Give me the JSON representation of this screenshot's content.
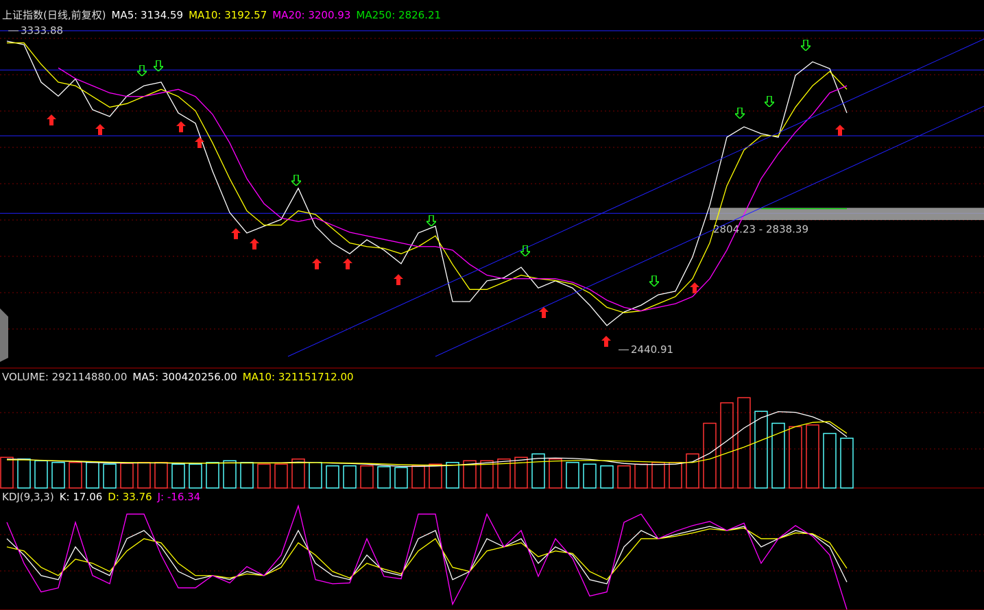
{
  "chart_data": [
    {
      "type": "line",
      "title": "上证指数(日线,前复权)",
      "ylim": [
        2390,
        3420
      ],
      "series": [
        {
          "name": "MA5: 3134.59",
          "color": "#ffffff",
          "values": [
            3305,
            3295,
            3190,
            3151,
            3199,
            3113,
            3094,
            3151,
            3180,
            3190,
            3104,
            3075,
            2941,
            2825,
            2768,
            2787,
            2806,
            2893,
            2787,
            2739,
            2710,
            2749,
            2720,
            2682,
            2768,
            2787,
            2576,
            2576,
            2634,
            2643,
            2672,
            2614,
            2634,
            2614,
            2566,
            2509,
            2547,
            2566,
            2595,
            2605,
            2701,
            2845,
            3036,
            3065,
            3046,
            3036,
            3209,
            3247,
            3228,
            3104
          ]
        },
        {
          "name": "MA10: 3192.57",
          "color": "#ffff00",
          "values": [
            3300,
            3300,
            3240,
            3190,
            3180,
            3150,
            3120,
            3130,
            3150,
            3170,
            3150,
            3110,
            3020,
            2920,
            2830,
            2790,
            2790,
            2830,
            2820,
            2780,
            2740,
            2730,
            2725,
            2710,
            2730,
            2760,
            2680,
            2610,
            2610,
            2630,
            2650,
            2640,
            2635,
            2625,
            2600,
            2560,
            2545,
            2550,
            2570,
            2590,
            2640,
            2740,
            2900,
            3000,
            3040,
            3040,
            3120,
            3180,
            3220,
            3170
          ]
        },
        {
          "name": "MA20: 3200.93",
          "color": "#ff00ff",
          "values": [
            null,
            null,
            null,
            3230,
            3200,
            3180,
            3160,
            3150,
            3150,
            3160,
            3170,
            3150,
            3100,
            3020,
            2920,
            2850,
            2810,
            2800,
            2810,
            2790,
            2770,
            2760,
            2750,
            2740,
            2730,
            2730,
            2720,
            2680,
            2650,
            2640,
            2640,
            2640,
            2640,
            2630,
            2610,
            2580,
            2560,
            2550,
            2560,
            2570,
            2590,
            2640,
            2720,
            2820,
            2920,
            2990,
            3050,
            3100,
            3160,
            3180
          ]
        },
        {
          "name": "MA250: 2826.21",
          "color": "#00e000",
          "values": [
            null,
            null,
            null,
            null,
            null,
            null,
            null,
            null,
            null,
            null,
            null,
            null,
            null,
            null,
            null,
            null,
            null,
            null,
            null,
            null,
            null,
            null,
            null,
            null,
            null,
            null,
            null,
            null,
            null,
            null,
            null,
            null,
            null,
            null,
            null,
            null,
            null,
            null,
            null,
            null,
            null,
            null,
            null,
            null,
            2836,
            2836,
            2836,
            2836,
            2836,
            2836
          ]
        }
      ],
      "hlines": [
        3334,
        3224,
        3040,
        2823
      ],
      "hline_color": "#2020ff",
      "band": {
        "label": "2804.23 - 2838.39",
        "range": [
          2804.23,
          2838.39
        ]
      },
      "annotations": [
        {
          "text": "3333.88",
          "value": 3333.88
        },
        {
          "text": "2440.91",
          "value": 2440.91
        }
      ]
    },
    {
      "type": "bar",
      "title": "VOLUME: 292114880.00",
      "ylim": [
        0,
        700000000
      ],
      "up_color": "#ff3232",
      "down_color": "#54fcfc",
      "values": [
        180000000,
        170000000,
        160000000,
        150000000,
        150000000,
        150000000,
        140000000,
        145000000,
        150000000,
        150000000,
        140000000,
        140000000,
        150000000,
        160000000,
        150000000,
        140000000,
        140000000,
        170000000,
        150000000,
        130000000,
        130000000,
        130000000,
        125000000,
        120000000,
        130000000,
        140000000,
        150000000,
        160000000,
        160000000,
        170000000,
        180000000,
        200000000,
        170000000,
        150000000,
        140000000,
        130000000,
        130000000,
        140000000,
        150000000,
        150000000,
        200000000,
        380000000,
        500000000,
        530000000,
        450000000,
        380000000,
        360000000,
        370000000,
        320000000,
        292114880
      ],
      "series": [
        {
          "name": "MA5: 300420256.00",
          "color": "#ffffff",
          "values": [
            170000000,
            168000000,
            162000000,
            158000000,
            156000000,
            150000000,
            147000000,
            147000000,
            147000000,
            147000000,
            145000000,
            145000000,
            146000000,
            148000000,
            148000000,
            148000000,
            148000000,
            152000000,
            150000000,
            146000000,
            144000000,
            140000000,
            133000000,
            127000000,
            127000000,
            129000000,
            133000000,
            140000000,
            148000000,
            156000000,
            164000000,
            174000000,
            176000000,
            174000000,
            168000000,
            158000000,
            144000000,
            138000000,
            138000000,
            140000000,
            154000000,
            204000000,
            276000000,
            352000000,
            412000000,
            448000000,
            444000000,
            418000000,
            376000000,
            300420256
          ]
        },
        {
          "name": "MA10: 321151712.00",
          "color": "#ffff00",
          "values": [
            165000000,
            165000000,
            163000000,
            160000000,
            158000000,
            155000000,
            152000000,
            150000000,
            149000000,
            149000000,
            147000000,
            146000000,
            146000000,
            147000000,
            147000000,
            147000000,
            147000000,
            148000000,
            149000000,
            148000000,
            146000000,
            144000000,
            141000000,
            137000000,
            135000000,
            134000000,
            134000000,
            136000000,
            139000000,
            143000000,
            148000000,
            154000000,
            158000000,
            161000000,
            162000000,
            161000000,
            158000000,
            155000000,
            152000000,
            149000000,
            150000000,
            170000000,
            205000000,
            240000000,
            280000000,
            320000000,
            360000000,
            385000000,
            390000000,
            321151712
          ]
        }
      ]
    },
    {
      "type": "line",
      "title": "KDJ(9,3,3)",
      "ylim": [
        -17,
        131
      ],
      "series": [
        {
          "name": "K: 17.06",
          "color": "#ffffff",
          "values": [
            70,
            50,
            25,
            20,
            60,
            35,
            25,
            70,
            80,
            60,
            30,
            20,
            25,
            20,
            30,
            25,
            40,
            80,
            40,
            25,
            20,
            50,
            30,
            25,
            70,
            80,
            20,
            30,
            70,
            60,
            70,
            40,
            60,
            50,
            20,
            15,
            60,
            80,
            70,
            75,
            80,
            85,
            80,
            85,
            60,
            70,
            80,
            75,
            60,
            17.06
          ]
        },
        {
          "name": "D: 33.76",
          "color": "#ffff00",
          "values": [
            60,
            55,
            35,
            25,
            45,
            40,
            30,
            55,
            70,
            65,
            40,
            25,
            25,
            22,
            27,
            25,
            35,
            65,
            50,
            30,
            22,
            40,
            33,
            27,
            55,
            70,
            35,
            30,
            55,
            60,
            65,
            48,
            55,
            52,
            30,
            20,
            45,
            70,
            70,
            73,
            77,
            82,
            80,
            83,
            70,
            70,
            77,
            76,
            65,
            33.76
          ]
        },
        {
          "name": "J: -16.34",
          "color": "#ff00ff",
          "values": [
            90,
            40,
            5,
            10,
            90,
            25,
            15,
            100,
            100,
            50,
            10,
            10,
            25,
            16,
            36,
            25,
            50,
            110,
            20,
            15,
            16,
            70,
            24,
            21,
            100,
            100,
            -10,
            30,
            100,
            60,
            80,
            24,
            70,
            46,
            0,
            5,
            90,
            100,
            70,
            79,
            86,
            91,
            80,
            89,
            40,
            70,
            86,
            73,
            50,
            -16.34
          ]
        }
      ]
    }
  ]
}
